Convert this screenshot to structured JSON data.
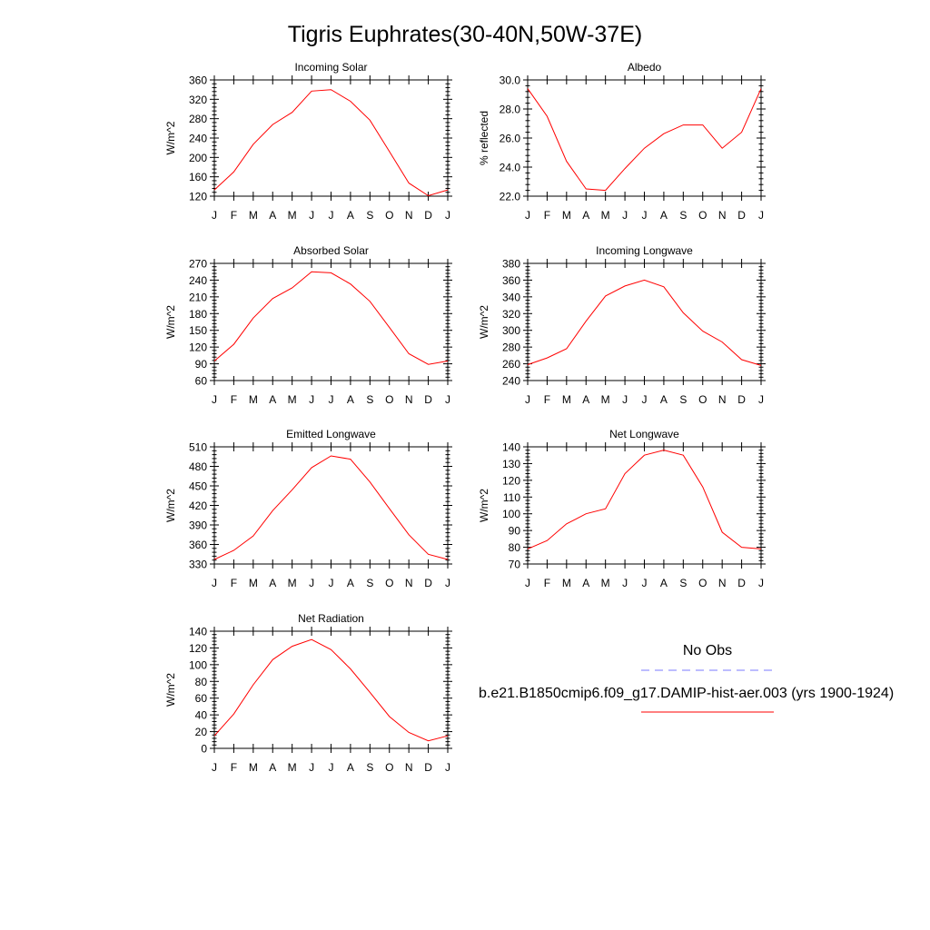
{
  "figure": {
    "title": "Tigris Euphrates(30-40N,50W-37E)"
  },
  "legend": {
    "obs_label": "No Obs",
    "model_label": "b.e21.B1850cmip6.f09_g17.DAMIP-hist-aer.003 (yrs 1900-1924)",
    "obs_color": "#7b7bff",
    "model_color": "#ff0000"
  },
  "chart_data": [
    {
      "type": "line",
      "title": "Incoming Solar",
      "ylabel": "W/m^2",
      "x": [
        "J",
        "F",
        "M",
        "A",
        "M",
        "J",
        "J",
        "A",
        "S",
        "O",
        "N",
        "D",
        "J"
      ],
      "ylim": [
        120,
        360
      ],
      "yticks": [
        120,
        160,
        200,
        240,
        280,
        320,
        360
      ],
      "ytick_labels": [
        "120",
        "160",
        "200",
        "240",
        "280",
        "320",
        "360"
      ],
      "series": [
        {
          "color": "#ff0000",
          "values": [
            133,
            170,
            227,
            268,
            293,
            337,
            340,
            316,
            277,
            212,
            147,
            121,
            133
          ]
        }
      ]
    },
    {
      "type": "line",
      "title": "Albedo",
      "ylabel": "% reflected",
      "x": [
        "J",
        "F",
        "M",
        "A",
        "M",
        "J",
        "J",
        "A",
        "S",
        "O",
        "N",
        "D",
        "J"
      ],
      "ylim": [
        22.0,
        30.0
      ],
      "yticks": [
        22,
        24,
        26,
        28,
        30
      ],
      "ytick_labels": [
        "22.0",
        "24.0",
        "26.0",
        "28.0",
        "30.0"
      ],
      "series": [
        {
          "color": "#ff0000",
          "values": [
            29.4,
            27.5,
            24.4,
            22.5,
            22.4,
            23.9,
            25.3,
            26.3,
            26.9,
            26.9,
            25.3,
            26.4,
            29.4
          ]
        }
      ]
    },
    {
      "type": "line",
      "title": "Absorbed Solar",
      "ylabel": "W/m^2",
      "x": [
        "J",
        "F",
        "M",
        "A",
        "M",
        "J",
        "J",
        "A",
        "S",
        "O",
        "N",
        "D",
        "J"
      ],
      "ylim": [
        60,
        270
      ],
      "yticks": [
        60,
        90,
        120,
        150,
        180,
        210,
        240,
        270
      ],
      "ytick_labels": [
        "60",
        "90",
        "120",
        "150",
        "180",
        "210",
        "240",
        "270"
      ],
      "series": [
        {
          "color": "#ff0000",
          "values": [
            95,
            125,
            172,
            207,
            226,
            255,
            253,
            233,
            202,
            155,
            108,
            89,
            95
          ]
        }
      ]
    },
    {
      "type": "line",
      "title": "Incoming Longwave",
      "ylabel": "W/m^2",
      "x": [
        "J",
        "F",
        "M",
        "A",
        "M",
        "J",
        "J",
        "A",
        "S",
        "O",
        "N",
        "D",
        "J"
      ],
      "ylim": [
        240,
        380
      ],
      "yticks": [
        240,
        260,
        280,
        300,
        320,
        340,
        360,
        380
      ],
      "ytick_labels": [
        "240",
        "260",
        "280",
        "300",
        "320",
        "340",
        "360",
        "380"
      ],
      "series": [
        {
          "color": "#ff0000",
          "values": [
            259,
            267,
            278,
            311,
            341,
            353,
            360,
            352,
            321,
            299,
            286,
            265,
            258
          ]
        }
      ]
    },
    {
      "type": "line",
      "title": "Emitted Longwave",
      "ylabel": "W/m^2",
      "x": [
        "J",
        "F",
        "M",
        "A",
        "M",
        "J",
        "J",
        "A",
        "S",
        "O",
        "N",
        "D",
        "J"
      ],
      "ylim": [
        330,
        510
      ],
      "yticks": [
        330,
        360,
        390,
        420,
        450,
        480,
        510
      ],
      "ytick_labels": [
        "330",
        "360",
        "390",
        "420",
        "450",
        "480",
        "510"
      ],
      "series": [
        {
          "color": "#ff0000",
          "values": [
            337,
            351,
            373,
            412,
            444,
            478,
            496,
            491,
            456,
            415,
            375,
            345,
            337
          ]
        }
      ]
    },
    {
      "type": "line",
      "title": "Net Longwave",
      "ylabel": "W/m^2",
      "x": [
        "J",
        "F",
        "M",
        "A",
        "M",
        "J",
        "J",
        "A",
        "S",
        "O",
        "N",
        "D",
        "J"
      ],
      "ylim": [
        70,
        140
      ],
      "yticks": [
        70,
        80,
        90,
        100,
        110,
        120,
        130,
        140
      ],
      "ytick_labels": [
        "70",
        "80",
        "90",
        "100",
        "110",
        "120",
        "130",
        "140"
      ],
      "series": [
        {
          "color": "#ff0000",
          "values": [
            79,
            84,
            94,
            100,
            103,
            124,
            135,
            138,
            135,
            116,
            89,
            80,
            79
          ]
        }
      ]
    },
    {
      "type": "line",
      "title": "Net Radiation",
      "ylabel": "W/m^2",
      "x": [
        "J",
        "F",
        "M",
        "A",
        "M",
        "J",
        "J",
        "A",
        "S",
        "O",
        "N",
        "D",
        "J"
      ],
      "ylim": [
        0,
        140
      ],
      "yticks": [
        0,
        20,
        40,
        60,
        80,
        100,
        120,
        140
      ],
      "ytick_labels": [
        "0",
        "20",
        "40",
        "60",
        "80",
        "100",
        "120",
        "140"
      ],
      "series": [
        {
          "color": "#ff0000",
          "values": [
            15,
            41,
            76,
            106,
            122,
            130,
            118,
            95,
            67,
            38,
            19,
            9,
            15
          ]
        }
      ]
    }
  ]
}
